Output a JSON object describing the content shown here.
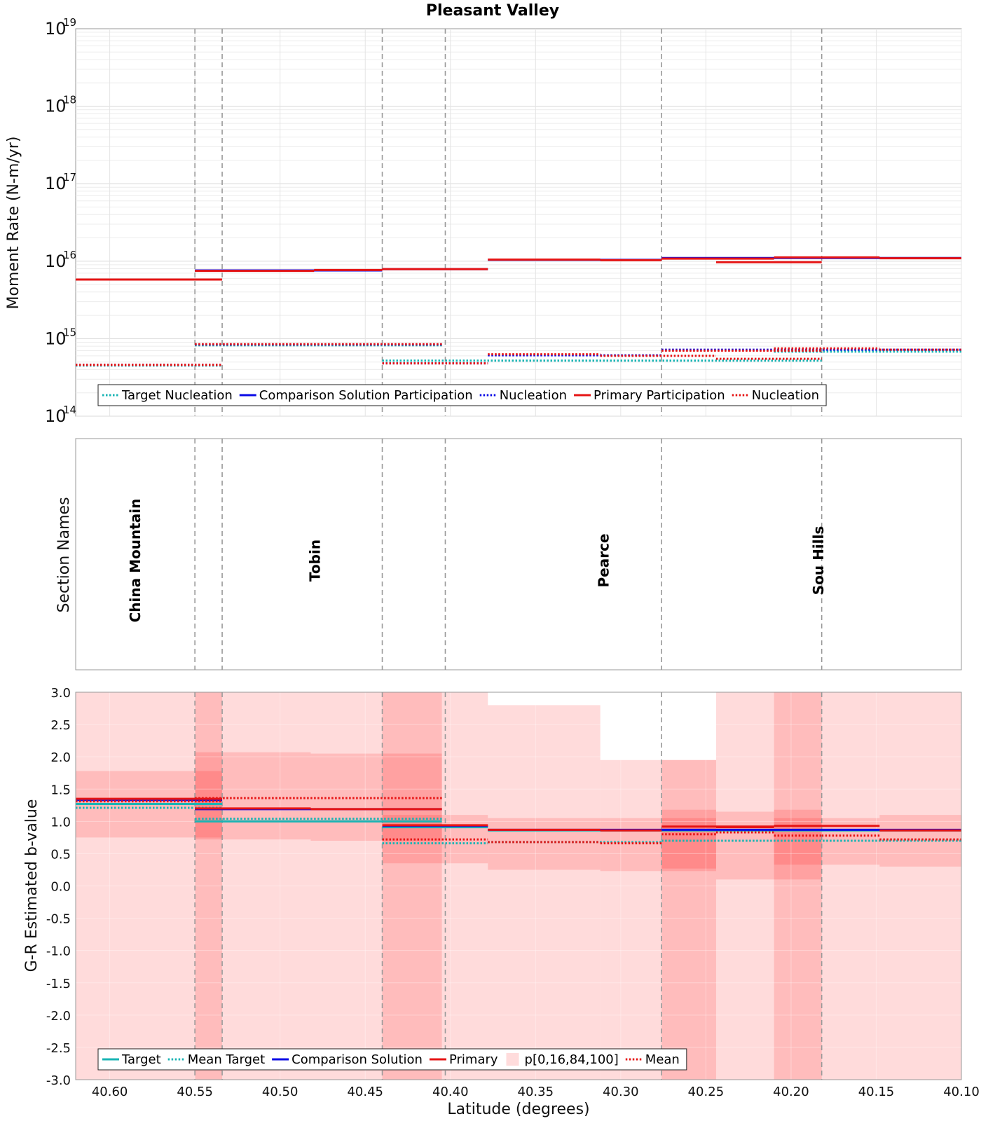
{
  "chart_data": [
    {
      "panel": "moment-rate",
      "type": "line",
      "title": "Pleasant Valley",
      "ylabel": "Moment Rate (N-m/yr)",
      "yscale": "log",
      "ylim_exponent": [
        14,
        19
      ],
      "y_tick_base": "10",
      "y_ticks": [
        {
          "base": "10",
          "exp": "19"
        },
        {
          "base": "10",
          "exp": "18"
        },
        {
          "base": "10",
          "exp": "17"
        },
        {
          "base": "10",
          "exp": "16"
        },
        {
          "base": "10",
          "exp": "15"
        },
        {
          "base": "10",
          "exp": "14"
        }
      ],
      "xlim": [
        40.62,
        40.1
      ],
      "legend_position": "bottom-left",
      "legend": [
        {
          "label": "Target Nucleation",
          "color": "#19b4b4",
          "style": "dotted"
        },
        {
          "label": "Comparison Solution Participation",
          "color": "#0a0ae6",
          "style": "solid"
        },
        {
          "label": "Nucleation",
          "color": "#0a0ae6",
          "style": "dotted"
        },
        {
          "label": "Primary Participation",
          "color": "#e61414",
          "style": "solid"
        },
        {
          "label": "Nucleation",
          "color": "#e61414",
          "style": "dotted"
        }
      ],
      "series": [
        {
          "name": "Primary Participation",
          "color": "#e61414",
          "style": "solid",
          "steps": [
            [
              40.62,
              40.534,
              5800000000000000.0
            ],
            [
              40.55,
              40.48,
              7500000000000000.0
            ],
            [
              40.48,
              40.44,
              7700000000000000.0
            ],
            [
              40.44,
              40.378,
              7900000000000000.0
            ],
            [
              40.378,
              40.312,
              1.05e+16
            ],
            [
              40.312,
              40.276,
              1.03e+16
            ],
            [
              40.276,
              40.21,
              1.08e+16
            ],
            [
              40.244,
              40.182,
              9700000000000000.0
            ],
            [
              40.21,
              40.148,
              1.12e+16
            ],
            [
              40.148,
              40.1,
              1.09e+16
            ]
          ]
        },
        {
          "name": "Primary Nucleation",
          "color": "#e61414",
          "style": "dotted",
          "steps": [
            [
              40.62,
              40.534,
              460000000000000.0
            ],
            [
              40.55,
              40.405,
              850000000000000.0
            ],
            [
              40.44,
              40.378,
              480000000000000.0
            ],
            [
              40.378,
              40.312,
              630000000000000.0
            ],
            [
              40.312,
              40.244,
              600000000000000.0
            ],
            [
              40.276,
              40.182,
              700000000000000.0
            ],
            [
              40.244,
              40.182,
              550000000000000.0
            ],
            [
              40.21,
              40.148,
              750000000000000.0
            ],
            [
              40.148,
              40.1,
              720000000000000.0
            ]
          ]
        },
        {
          "name": "Comparison Solution Participation",
          "color": "#0a0ae6",
          "style": "solid",
          "steps": [
            [
              40.62,
              40.534,
              5800000000000000.0
            ],
            [
              40.55,
              40.44,
              7600000000000000.0
            ],
            [
              40.44,
              40.378,
              7900000000000000.0
            ],
            [
              40.378,
              40.276,
              1.04e+16
            ],
            [
              40.276,
              40.1,
              1.1e+16
            ]
          ]
        },
        {
          "name": "Comparison Solution Nucleation",
          "color": "#0a0ae6",
          "style": "dotted",
          "steps": [
            [
              40.62,
              40.534,
              460000000000000.0
            ],
            [
              40.55,
              40.405,
              840000000000000.0
            ],
            [
              40.44,
              40.378,
              480000000000000.0
            ],
            [
              40.378,
              40.276,
              610000000000000.0
            ],
            [
              40.276,
              40.1,
              720000000000000.0
            ]
          ]
        },
        {
          "name": "Target Nucleation",
          "color": "#19b4b4",
          "style": "dotted",
          "steps": [
            [
              40.62,
              40.534,
              450000000000000.0
            ],
            [
              40.55,
              40.405,
              820000000000000.0
            ],
            [
              40.44,
              40.182,
              520000000000000.0
            ],
            [
              40.21,
              40.1,
              680000000000000.0
            ]
          ]
        }
      ]
    },
    {
      "panel": "section-names",
      "type": "table",
      "ylabel": "Section Names",
      "sections": [
        {
          "name": "China Mountain",
          "center": 40.585
        },
        {
          "name": "Tobin",
          "center": 40.4795
        },
        {
          "name": "Pearce",
          "center": 40.31
        },
        {
          "name": "Sou Hills",
          "center": 40.184
        }
      ]
    },
    {
      "panel": "b-value",
      "type": "area",
      "ylabel": "G-R Estimated b-value",
      "xlabel": "Latitude (degrees)",
      "ylim": [
        -3.0,
        3.0
      ],
      "y_ticks": [
        "3.0",
        "2.5",
        "2.0",
        "1.5",
        "1.0",
        "0.5",
        "0.0",
        "-0.5",
        "-1.0",
        "-1.5",
        "-2.0",
        "-2.5",
        "-3.0"
      ],
      "x_ticks": [
        "40.60",
        "40.55",
        "40.50",
        "40.45",
        "40.40",
        "40.35",
        "40.30",
        "40.25",
        "40.20",
        "40.15",
        "40.10"
      ],
      "legend_position": "bottom-left",
      "legend": [
        {
          "label": "Target",
          "color": "#19b4b4",
          "style": "solid"
        },
        {
          "label": "Mean Target",
          "color": "#19b4b4",
          "style": "dotted"
        },
        {
          "label": "Comparison Solution",
          "color": "#0a0ae6",
          "style": "solid"
        },
        {
          "label": "Primary",
          "color": "#e61414",
          "style": "solid"
        },
        {
          "label": "p[0,16,84,100]",
          "color": "#ffdcdc",
          "style": "box"
        },
        {
          "label": "Mean",
          "color": "#e61414",
          "style": "dotted"
        }
      ],
      "percentile_bands": {
        "color": "#ff0000",
        "outer_opacity": 0.14,
        "inner_opacity": 0.14,
        "segments": [
          {
            "x": [
              40.62,
              40.534
            ],
            "p0": -3.0,
            "p100": 3.0,
            "p16": 0.75,
            "p84": 1.78
          },
          {
            "x": [
              40.55,
              40.482
            ],
            "p0": -3.0,
            "p100": 3.0,
            "p16": 0.72,
            "p84": 2.07
          },
          {
            "x": [
              40.482,
              40.405
            ],
            "p0": -3.0,
            "p100": 3.0,
            "p16": 0.7,
            "p84": 2.05
          },
          {
            "x": [
              40.44,
              40.378
            ],
            "p0": -3.0,
            "p100": 3.0,
            "p16": 0.35,
            "p84": 1.1
          },
          {
            "x": [
              40.378,
              40.312
            ],
            "p0": -3.0,
            "p100": 2.8,
            "p16": 0.25,
            "p84": 1.05
          },
          {
            "x": [
              40.312,
              40.244
            ],
            "p0": -3.0,
            "p100": 1.95,
            "p16": 0.23,
            "p84": 1.05
          },
          {
            "x": [
              40.276,
              40.244
            ],
            "p0": -3.0,
            "p100": 1.95,
            "p16": 0.27,
            "p84": 1.18
          },
          {
            "x": [
              40.244,
              40.21
            ],
            "p0": -3.0,
            "p100": 3.0,
            "p16": 0.1,
            "p84": 1.15
          },
          {
            "x": [
              40.21,
              40.182
            ],
            "p0": -3.0,
            "p100": 3.0,
            "p16": 0.1,
            "p84": 1.18
          },
          {
            "x": [
              40.21,
              40.148
            ],
            "p0": -3.0,
            "p100": 3.0,
            "p16": 0.33,
            "p84": 1.05
          },
          {
            "x": [
              40.148,
              40.1
            ],
            "p0": -3.0,
            "p100": 3.0,
            "p16": 0.3,
            "p84": 1.1
          }
        ]
      },
      "series": [
        {
          "name": "Target",
          "color": "#19b4b4",
          "style": "solid",
          "steps": [
            [
              40.62,
              40.534,
              1.27
            ],
            [
              40.55,
              40.405,
              1.0
            ],
            [
              40.44,
              40.378,
              0.91
            ],
            [
              40.378,
              40.276,
              0.86
            ],
            [
              40.276,
              40.1,
              0.86
            ]
          ]
        },
        {
          "name": "Mean Target",
          "color": "#19b4b4",
          "style": "dotted",
          "steps": [
            [
              40.62,
              40.534,
              1.21
            ],
            [
              40.55,
              40.405,
              1.04
            ],
            [
              40.44,
              40.378,
              0.66
            ],
            [
              40.378,
              40.276,
              0.68
            ],
            [
              40.276,
              40.1,
              0.7
            ]
          ]
        },
        {
          "name": "Comparison Solution",
          "color": "#0a0ae6",
          "style": "solid",
          "steps": [
            [
              40.62,
              40.534,
              1.33
            ],
            [
              40.55,
              40.405,
              1.19
            ],
            [
              40.44,
              40.378,
              0.93
            ],
            [
              40.378,
              40.276,
              0.87
            ],
            [
              40.276,
              40.1,
              0.87
            ]
          ]
        },
        {
          "name": "Primary",
          "color": "#e61414",
          "style": "solid",
          "steps": [
            [
              40.62,
              40.534,
              1.35
            ],
            [
              40.55,
              40.482,
              1.2
            ],
            [
              40.482,
              40.405,
              1.19
            ],
            [
              40.44,
              40.378,
              0.94
            ],
            [
              40.378,
              40.312,
              0.87
            ],
            [
              40.312,
              40.276,
              0.86
            ],
            [
              40.276,
              40.21,
              0.92
            ],
            [
              40.244,
              40.21,
              0.91
            ],
            [
              40.21,
              40.148,
              0.93
            ],
            [
              40.148,
              40.1,
              0.86
            ]
          ]
        },
        {
          "name": "Mean",
          "color": "#e61414",
          "style": "dotted",
          "steps": [
            [
              40.62,
              40.534,
              1.31
            ],
            [
              40.55,
              40.405,
              1.36
            ],
            [
              40.44,
              40.378,
              0.72
            ],
            [
              40.378,
              40.312,
              0.68
            ],
            [
              40.312,
              40.276,
              0.66
            ],
            [
              40.276,
              40.244,
              0.8
            ],
            [
              40.244,
              40.21,
              0.83
            ],
            [
              40.21,
              40.182,
              0.78
            ],
            [
              40.182,
              40.148,
              0.78
            ],
            [
              40.148,
              40.1,
              0.72
            ]
          ]
        }
      ]
    }
  ],
  "section_boundaries": [
    40.55,
    40.534,
    40.44,
    40.403,
    40.276,
    40.182
  ]
}
